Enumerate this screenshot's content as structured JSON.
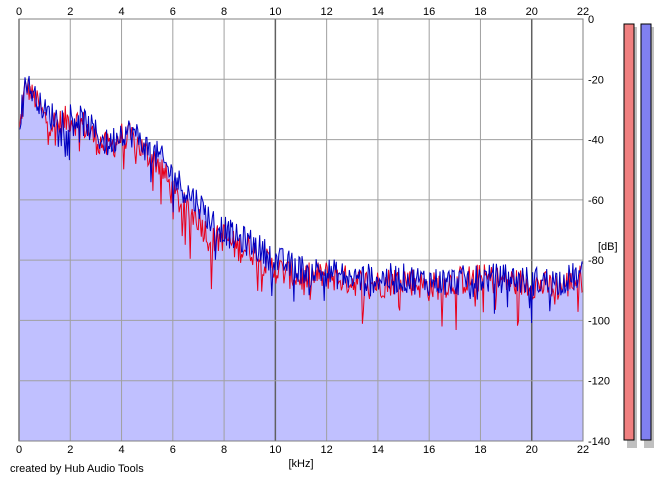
{
  "chart_data": {
    "type": "area",
    "xlabel": "[kHz]",
    "ylabel": "[dB]",
    "xlim": [
      0,
      22
    ],
    "ylim": [
      -140,
      0
    ],
    "x_ticks": [
      "0",
      "2",
      "4",
      "6",
      "8",
      "10",
      "12",
      "14",
      "16",
      "18",
      "20",
      "22"
    ],
    "y_ticks": [
      "0",
      "-20",
      "-40",
      "-60",
      "-80",
      "-100",
      "-120",
      "-140"
    ],
    "grid": true,
    "series": [
      {
        "color": "#e8001c",
        "fill": "#c0c0ff",
        "x": [
          0,
          0.25,
          0.5,
          0.75,
          1,
          1.5,
          2,
          2.5,
          3,
          3.5,
          4,
          4.5,
          5,
          5.5,
          6,
          6.5,
          7,
          7.5,
          8,
          8.5,
          9,
          9.5,
          10,
          11,
          12,
          13,
          14,
          15,
          16,
          17,
          18,
          19,
          20,
          21,
          22
        ],
        "y": [
          -38,
          -22,
          -25,
          -28,
          -33,
          -35,
          -33,
          -35,
          -40,
          -43,
          -39,
          -40,
          -45,
          -48,
          -58,
          -63,
          -66,
          -74,
          -72,
          -76,
          -76,
          -80,
          -83,
          -86,
          -85,
          -87,
          -88,
          -86,
          -89,
          -87,
          -86,
          -87,
          -88,
          -89,
          -86
        ]
      },
      {
        "color": "#0000c0",
        "x": [
          0,
          0.25,
          0.5,
          0.75,
          1,
          1.5,
          2,
          2.5,
          3,
          3.5,
          4,
          4.5,
          5,
          5.5,
          6,
          6.5,
          7,
          7.5,
          8,
          8.5,
          9,
          9.5,
          10,
          11,
          12,
          13,
          14,
          15,
          16,
          17,
          18,
          19,
          20,
          21,
          22
        ],
        "y": [
          -36,
          -20,
          -24,
          -27,
          -31,
          -33,
          -32,
          -34,
          -38,
          -42,
          -37,
          -38,
          -43,
          -46,
          -52,
          -57,
          -61,
          -67,
          -70,
          -73,
          -74,
          -77,
          -80,
          -83,
          -84,
          -86,
          -86,
          -86,
          -87,
          -87,
          -86,
          -86,
          -87,
          -87,
          -85
        ]
      }
    ],
    "meters": [
      {
        "color": "#f08080"
      },
      {
        "color": "#8080f0"
      }
    ]
  },
  "credit": "created by Hub Audio Tools"
}
